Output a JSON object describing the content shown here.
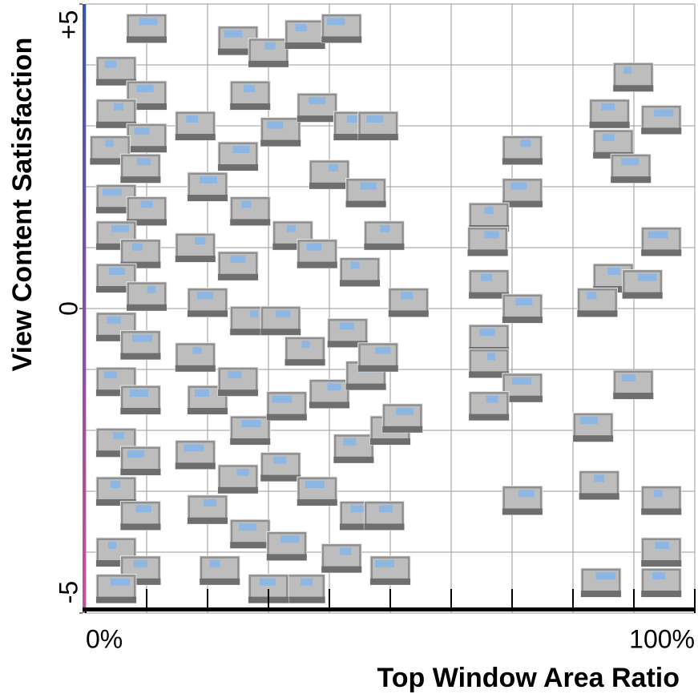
{
  "chart_data": {
    "type": "scatter",
    "x_label": "Top Window Area Ratio",
    "y_label": "View Content Satisfaction",
    "xlim": [
      0,
      100
    ],
    "ylim": [
      -5,
      5
    ],
    "xticks": [
      {
        "value": 0,
        "label": "0%"
      },
      {
        "value": 100,
        "label": "100%"
      }
    ],
    "yticks": [
      {
        "value": 5,
        "label": "+5"
      },
      0,
      {
        "value": -5,
        "label": "-5"
      }
    ],
    "grid": true,
    "color": "#8f8f8f",
    "window_color": "#8db6e2",
    "x": [
      89.9,
      86,
      94.5,
      86.6,
      89.5,
      71.7,
      71.7,
      66.2,
      66,
      94.5,
      86.6,
      91.4,
      66.2,
      71.7,
      84,
      66.2,
      66.2,
      89.9,
      71.7,
      66.2,
      83.3,
      84.3,
      71.7,
      94.5,
      94.5,
      84.6,
      94.5,
      10,
      5,
      10,
      5,
      10,
      4,
      9,
      5,
      10,
      5,
      9,
      5,
      10,
      5,
      9,
      5,
      9,
      5,
      9,
      5,
      9,
      5,
      9,
      5,
      18,
      20,
      18,
      20,
      18,
      20,
      18,
      20,
      25,
      27,
      25,
      27,
      25,
      27,
      25,
      27,
      25,
      27,
      30,
      32,
      34,
      32,
      33,
      32,
      33,
      36,
      38,
      40,
      38,
      36,
      40,
      38,
      36,
      42,
      44,
      46,
      45,
      43,
      46,
      44,
      45,
      42,
      48,
      49,
      48,
      50,
      49,
      50,
      53,
      52,
      22,
      30
    ],
    "y": [
      3.8,
      3.2,
      3.1,
      2.7,
      2.3,
      2.6,
      1.9,
      1.5,
      1.1,
      1.1,
      0.5,
      0.4,
      0.4,
      0,
      0.1,
      -0.5,
      -0.9,
      -1.25,
      -1.3,
      -1.6,
      -1.95,
      -2.9,
      -3.15,
      -3.15,
      -4,
      -4.5,
      -4.5,
      4.6,
      3.9,
      3.5,
      3.2,
      2.8,
      2.6,
      2.3,
      1.8,
      1.6,
      1.2,
      0.9,
      0.5,
      0.2,
      -0.3,
      -0.6,
      -1.2,
      -1.5,
      -2.2,
      -2.5,
      -3,
      -3.4,
      -4,
      -4.3,
      -4.6,
      3.0,
      2.0,
      1.0,
      0.1,
      -0.8,
      -1.5,
      -2.4,
      -3.3,
      4.4,
      3.5,
      2.5,
      1.6,
      0.7,
      -0.2,
      -1.2,
      -2.0,
      -2.8,
      -3.7,
      4.2,
      2.9,
      1.2,
      -0.2,
      -1.6,
      -2.6,
      -3.9,
      4.5,
      3.3,
      2.2,
      0.9,
      -0.7,
      -1.4,
      -3.0,
      -4.6,
      4.6,
      3.0,
      1.9,
      0.6,
      -0.4,
      -1.1,
      -2.3,
      -3.4,
      -4.1,
      3.0,
      1.2,
      -0.8,
      -2.0,
      -3.4,
      -4.3,
      0.1,
      -1.8,
      -4.3,
      -4.6
    ]
  }
}
